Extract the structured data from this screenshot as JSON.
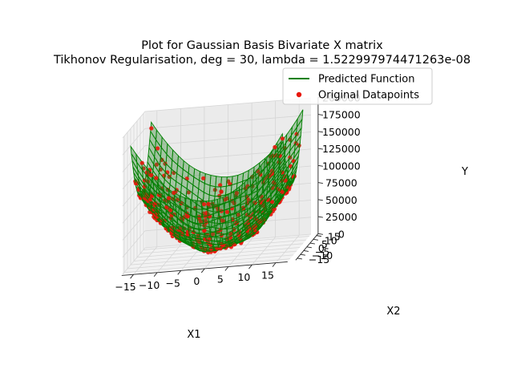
{
  "chart_data": {
    "type": "surface3d+scatter3d",
    "title_lines": [
      "Plot for Gaussian Basis Bivariate X matrix",
      "Tikhonov Regularisation, deg = 30, lambda = 1.522997974471263e-08"
    ],
    "xlabel": "X1",
    "ylabel": "X2",
    "zlabel": "Y",
    "xlim": [
      -17.5,
      17.5
    ],
    "ylim": [
      -17.5,
      17.5
    ],
    "zlim": [
      0,
      200000
    ],
    "x_ticks": [
      -15,
      -10,
      -5,
      0,
      5,
      10,
      15
    ],
    "y_ticks": [
      -15,
      -10,
      -5,
      0,
      5,
      10,
      15
    ],
    "z_ticks": [
      0,
      25000,
      50000,
      75000,
      100000,
      125000,
      150000,
      175000,
      200000
    ],
    "x_tick_labels": [
      "−15",
      "−10",
      "−5",
      "0",
      "5",
      "10",
      "15"
    ],
    "y_tick_labels": [
      "−15",
      "−10",
      "−5",
      "0",
      "5",
      "10",
      "15"
    ],
    "z_tick_labels": [
      "0",
      "25000",
      "50000",
      "75000",
      "100000",
      "125000",
      "150000",
      "175000",
      "200000"
    ],
    "grid": true,
    "legend_position": "upper-right",
    "series": [
      {
        "name": "Predicted Function",
        "kind": "wireframe",
        "color": "#008000"
      },
      {
        "name": "Original Datapoints",
        "kind": "scatter",
        "color": "#e8170c"
      }
    ]
  }
}
